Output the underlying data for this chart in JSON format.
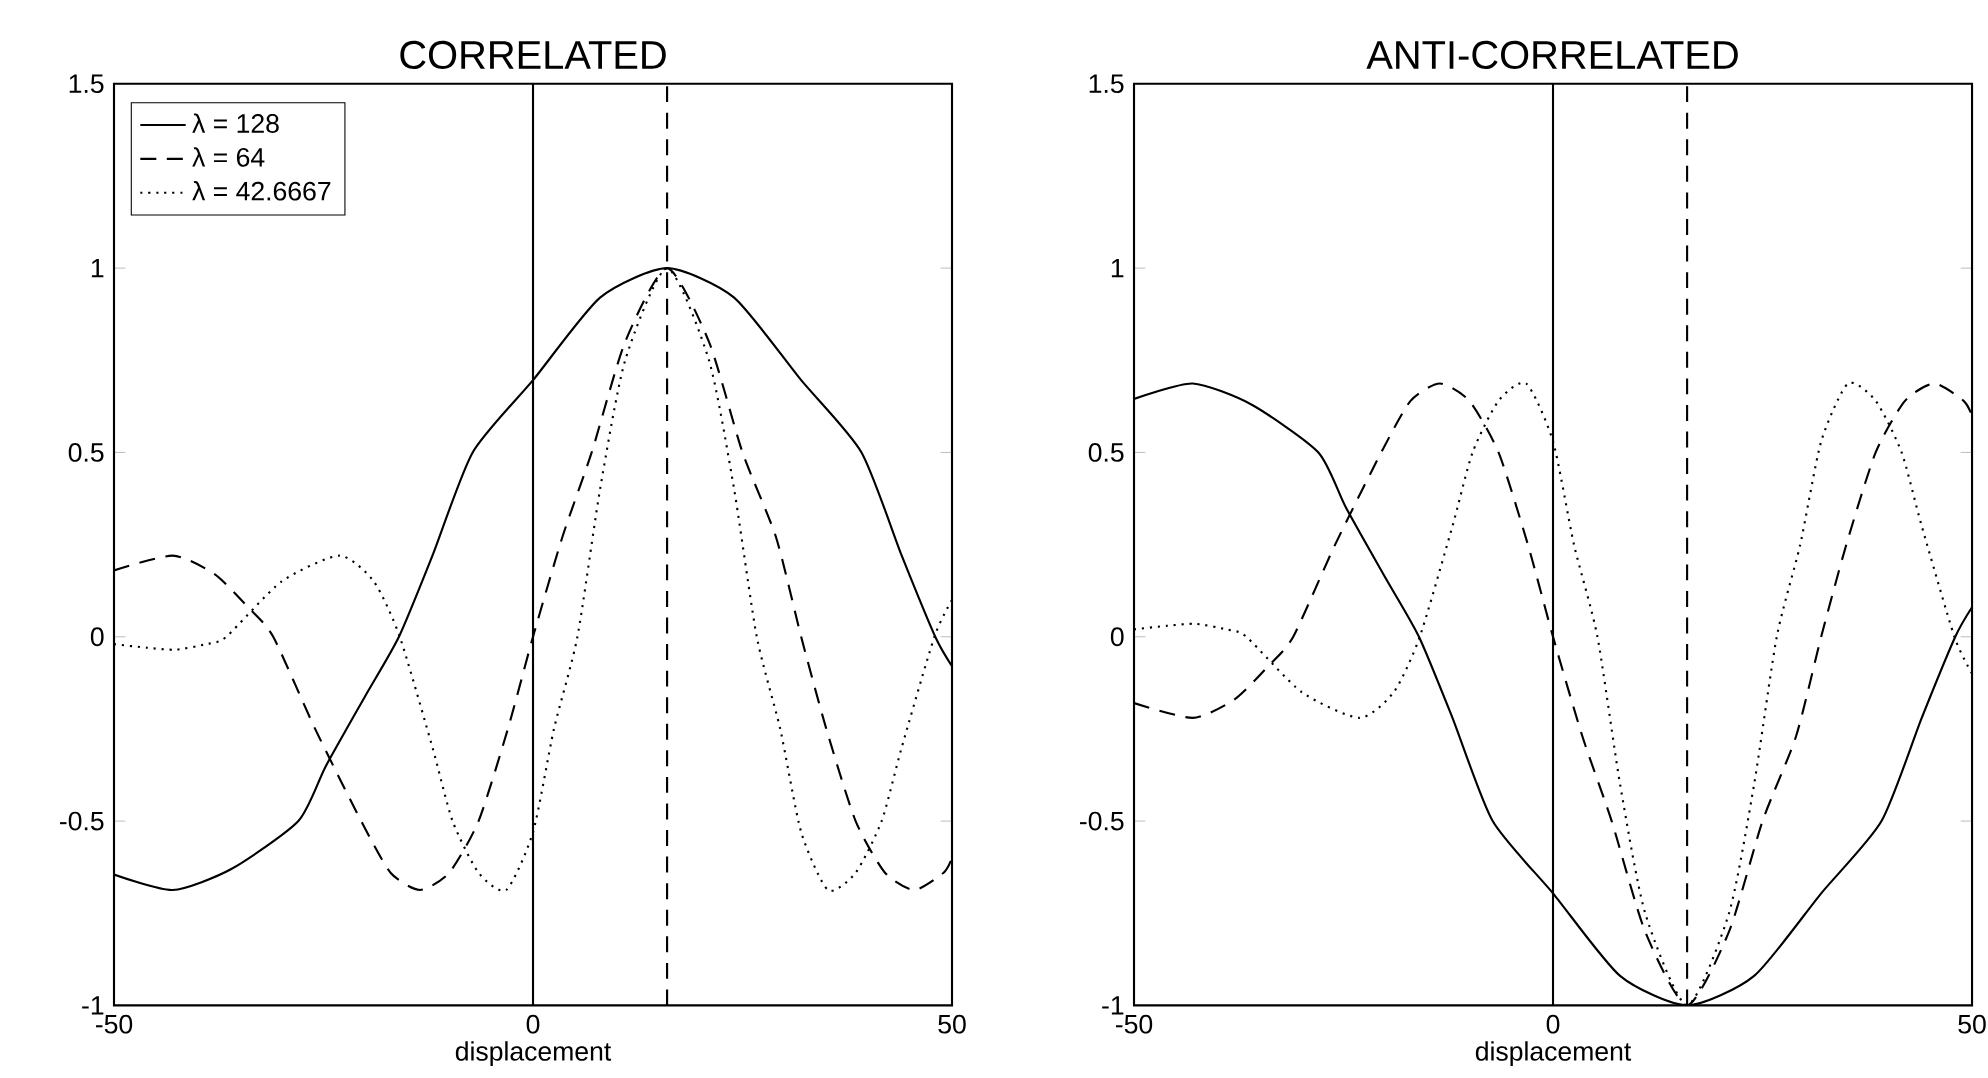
{
  "chart_data": [
    {
      "type": "line",
      "title": "CORRELATED",
      "xlabel": "displacement",
      "xlim": [
        -50,
        50
      ],
      "ylim": [
        -1,
        1.5
      ],
      "xticks": [
        -50,
        0,
        50
      ],
      "yticks": [
        -1,
        -0.5,
        0,
        0.5,
        1,
        1.5
      ],
      "legend": "top left",
      "series": [
        {
          "name": "λ = 128",
          "color": "#000000",
          "line_style": "solid",
          "x": [
            -50,
            -43,
            -36,
            -28,
            -24.7,
            -20,
            -16,
            -12,
            -7.2,
            0,
            8,
            16,
            24,
            32,
            39.2,
            44,
            48,
            50
          ],
          "values": [
            -0.645,
            -0.687,
            -0.63,
            -0.5,
            -0.35,
            -0.16,
            0,
            0.22,
            0.5,
            0.696,
            0.92,
            1,
            0.92,
            0.696,
            0.5,
            0.22,
            0,
            -0.08
          ]
        },
        {
          "name": "λ = 64",
          "color": "#000000",
          "line_style": "dashed",
          "x": [
            -50,
            -43,
            -38,
            -34,
            -31,
            -26,
            -20.5,
            -17,
            -13.5,
            -10,
            -6.5,
            -3,
            0,
            3.5,
            7,
            11,
            16,
            21,
            25,
            29,
            32,
            35,
            38.5,
            42,
            45.5,
            49,
            50
          ],
          "values": [
            0.18,
            0.22,
            0.17,
            0.08,
            0,
            -0.25,
            -0.5,
            -0.64,
            -0.687,
            -0.64,
            -0.5,
            -0.25,
            0,
            0.27,
            0.5,
            0.8,
            1,
            0.8,
            0.5,
            0.27,
            0,
            -0.25,
            -0.5,
            -0.64,
            -0.687,
            -0.64,
            -0.6
          ]
        },
        {
          "name": "λ = 42.6667",
          "color": "#000000",
          "line_style": "dotted",
          "x": [
            -50,
            -46,
            -42.6,
            -39,
            -36.6,
            -30,
            -23.1,
            -19,
            -15.9,
            -12,
            -9.6,
            -6.5,
            -3.2,
            0,
            2.5,
            5.3,
            8,
            11,
            16,
            21,
            24,
            26.7,
            29.5,
            32,
            35.2,
            38.5,
            41.6,
            44,
            47.9,
            50
          ],
          "values": [
            -0.02,
            -0.03,
            -0.035,
            -0.02,
            0,
            0.15,
            0.22,
            0.15,
            0,
            -0.3,
            -0.5,
            -0.64,
            -0.687,
            -0.53,
            -0.25,
            0,
            0.4,
            0.75,
            1,
            0.75,
            0.4,
            0,
            -0.25,
            -0.53,
            -0.687,
            -0.64,
            -0.5,
            -0.3,
            0,
            0.1
          ]
        }
      ],
      "ref_lines": [
        {
          "axis": "x",
          "value": 0,
          "color": "#000000",
          "line_style": "solid"
        },
        {
          "axis": "x",
          "value": 16,
          "color": "#000000",
          "line_style": "dashed"
        }
      ]
    },
    {
      "type": "line",
      "title": "ANTI-CORRELATED",
      "xlabel": "displacement",
      "xlim": [
        -50,
        50
      ],
      "ylim": [
        -1,
        1.5
      ],
      "xticks": [
        -50,
        0,
        50
      ],
      "yticks": [
        -1,
        -0.5,
        0,
        0.5,
        1,
        1.5
      ],
      "series": [
        {
          "color": "#000000",
          "line_style": "solid",
          "x": [
            -50,
            -43,
            -36,
            -28,
            -24.7,
            -20,
            -16,
            -12,
            -7.2,
            0,
            8,
            16,
            24,
            32,
            39.2,
            44,
            48,
            50
          ],
          "values": [
            0.645,
            0.687,
            0.63,
            0.5,
            0.35,
            0.16,
            0,
            -0.22,
            -0.5,
            -0.696,
            -0.92,
            -1,
            -0.92,
            -0.696,
            -0.5,
            -0.22,
            0,
            0.08
          ]
        },
        {
          "color": "#000000",
          "line_style": "dashed",
          "x": [
            -50,
            -43,
            -38,
            -34,
            -31,
            -26,
            -20.5,
            -17,
            -13.5,
            -10,
            -6.5,
            -3,
            0,
            3.5,
            7,
            11,
            16,
            21,
            25,
            29,
            32,
            35,
            38.5,
            42,
            45.5,
            49,
            50
          ],
          "values": [
            -0.18,
            -0.22,
            -0.17,
            -0.08,
            0,
            0.25,
            0.5,
            0.64,
            0.687,
            0.64,
            0.5,
            0.25,
            0,
            -0.27,
            -0.5,
            -0.8,
            -1,
            -0.8,
            -0.5,
            -0.27,
            0,
            0.25,
            0.5,
            0.64,
            0.687,
            0.64,
            0.6
          ]
        },
        {
          "color": "#000000",
          "line_style": "dotted",
          "x": [
            -50,
            -46,
            -42.6,
            -39,
            -36.6,
            -30,
            -23.1,
            -19,
            -15.9,
            -12,
            -9.6,
            -6.5,
            -3.2,
            0,
            2.5,
            5.3,
            8,
            11,
            16,
            21,
            24,
            26.7,
            29.5,
            32,
            35.2,
            38.5,
            41.6,
            44,
            47.9,
            50
          ],
          "values": [
            0.02,
            0.03,
            0.035,
            0.02,
            0,
            -0.15,
            -0.22,
            -0.15,
            0,
            0.3,
            0.5,
            0.64,
            0.687,
            0.53,
            0.25,
            0,
            -0.4,
            -0.75,
            -1,
            -0.75,
            -0.4,
            0,
            0.25,
            0.53,
            0.687,
            0.64,
            0.5,
            0.3,
            0,
            -0.1
          ]
        }
      ],
      "ref_lines": [
        {
          "axis": "x",
          "value": 0,
          "color": "#000000",
          "line_style": "solid"
        },
        {
          "axis": "x",
          "value": 16,
          "color": "#000000",
          "line_style": "dashed"
        }
      ]
    }
  ]
}
